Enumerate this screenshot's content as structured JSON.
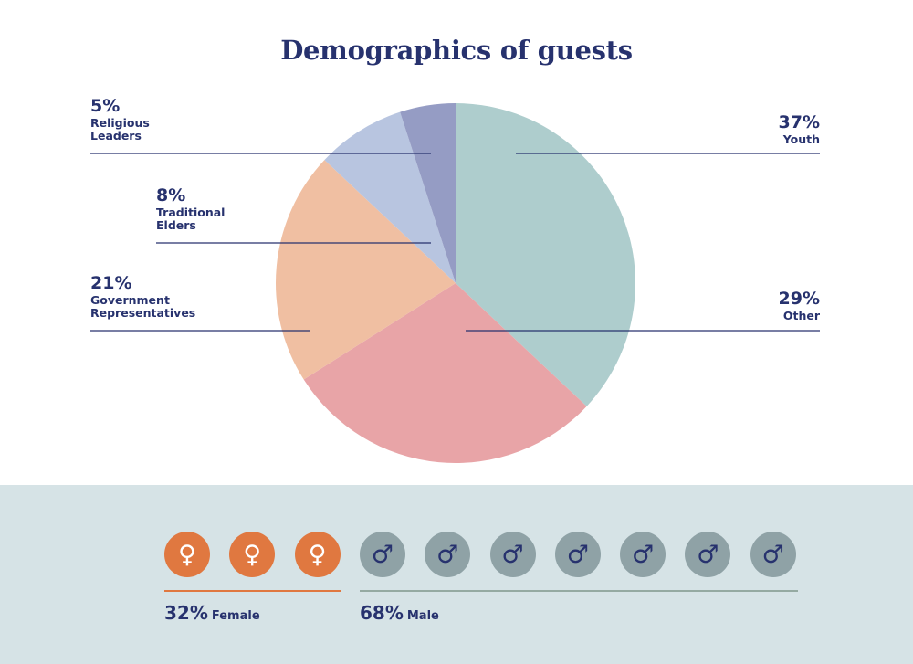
{
  "chart_data": {
    "type": "pie",
    "title": "Demographics of guests",
    "start_angle_deg": 0,
    "direction": "clockwise",
    "slices": [
      {
        "pct_label": "37%",
        "value": 37,
        "label_lines": [
          "Youth"
        ],
        "color": "#aecdcd"
      },
      {
        "pct_label": "29%",
        "value": 29,
        "label_lines": [
          "Other"
        ],
        "color": "#e8a4a7"
      },
      {
        "pct_label": "21%",
        "value": 21,
        "label_lines": [
          "Government",
          "Representatives"
        ],
        "color": "#f0bfa2"
      },
      {
        "pct_label": "8%",
        "value": 8,
        "label_lines": [
          "Traditional",
          "Elders"
        ],
        "color": "#b8c5e0"
      },
      {
        "pct_label": "5%",
        "value": 5,
        "label_lines": [
          "Religious",
          "Leaders"
        ],
        "color": "#959cc4"
      }
    ]
  },
  "gender": {
    "female": {
      "count_icons": 3,
      "pct_label": "32%",
      "label": "Female",
      "symbol": "♀",
      "color": "#e07840",
      "icon": "female-symbol-icon"
    },
    "male": {
      "count_icons": 7,
      "pct_label": "68%",
      "label": "Male",
      "symbol": "♂",
      "color": "#8fa2a6",
      "icon": "male-symbol-icon"
    }
  },
  "colors": {
    "text": "#27326e",
    "footer_bg": "#d6e3e6"
  }
}
